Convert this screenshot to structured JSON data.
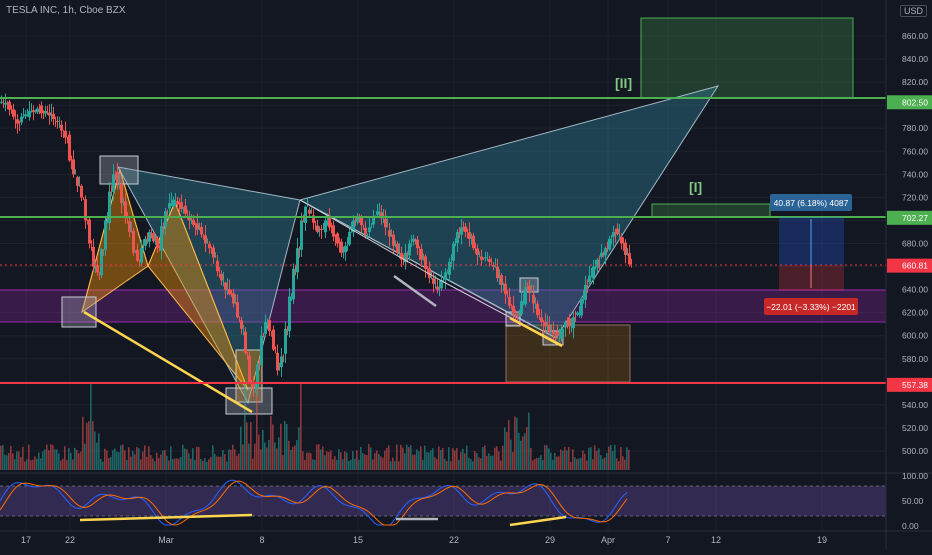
{
  "header": {
    "symbol_title": "TESLA INC, 1h, Cboe BZX",
    "currency": "USD"
  },
  "colors": {
    "background": "#131722",
    "grid": "#1e222d",
    "bull": "#26a69a",
    "bear": "#ef5350",
    "resistance_line": "#4caf50",
    "support_line": "#f23645",
    "zone_purple": "#9c27b0",
    "harmonic_blue": "#2f6f86",
    "harmonic_orange": "#ff9800",
    "trendline_yellow": "#ffd54f",
    "trendline_gray": "#b2b5be",
    "long_target": "#2962ff",
    "long_stop": "#f23645"
  },
  "chart_data": {
    "type": "candlestick",
    "y_axis": {
      "ticks": [
        "860.00",
        "840.00",
        "820.00",
        "800.00",
        "780.00",
        "760.00",
        "740.00",
        "720.00",
        "700.00",
        "680.00",
        "660.00",
        "640.00",
        "620.00",
        "600.00",
        "580.00",
        "560.00",
        "540.00",
        "520.00",
        "500.00"
      ],
      "range": [
        490,
        880
      ]
    },
    "x_axis": {
      "ticks": [
        "17",
        "22",
        "Mar",
        "8",
        "15",
        "22",
        "29",
        "Apr",
        "7",
        "12",
        "19"
      ]
    },
    "price_labels": [
      {
        "text": "802.50",
        "value": 802.5,
        "color": "#4caf50"
      },
      {
        "text": "702.27",
        "value": 702.27,
        "color": "#4caf50"
      },
      {
        "text": "660.81",
        "value": 660.81,
        "color": "#f23645"
      },
      {
        "text": "557.38",
        "value": 557.38,
        "color": "#f23645"
      }
    ],
    "horizontal_lines": [
      {
        "value": 802.5,
        "kind": "resistance"
      },
      {
        "value": 702.27,
        "kind": "resistance"
      },
      {
        "value": 557.38,
        "kind": "support"
      }
    ],
    "zones": [
      {
        "from": 612,
        "to": 638,
        "kind": "purple-demand"
      }
    ],
    "annotations": [
      {
        "text": "[II]"
      },
      {
        "text": "[I]"
      }
    ],
    "long_position": {
      "target_label": "40.87 (6.18%) 4087",
      "stop_label": "−22.01 (−3.33%) −2201",
      "entry": 660.81,
      "target": 701.68,
      "stop": 638.8
    },
    "close_path": [
      [
        0,
        803
      ],
      [
        4,
        802
      ],
      [
        8,
        796
      ],
      [
        12,
        790
      ],
      [
        16,
        784
      ],
      [
        20,
        790
      ],
      [
        24,
        792
      ],
      [
        28,
        795
      ],
      [
        32,
        794
      ],
      [
        36,
        797
      ],
      [
        40,
        793
      ],
      [
        44,
        795
      ],
      [
        48,
        791
      ],
      [
        52,
        788
      ],
      [
        56,
        786
      ],
      [
        60,
        778
      ],
      [
        64,
        772
      ],
      [
        68,
        752
      ],
      [
        72,
        740
      ],
      [
        76,
        730
      ],
      [
        80,
        720
      ],
      [
        84,
        700
      ],
      [
        88,
        680
      ],
      [
        92,
        660
      ],
      [
        96,
        655
      ],
      [
        100,
        675
      ],
      [
        104,
        700
      ],
      [
        108,
        725
      ],
      [
        112,
        740
      ],
      [
        116,
        732
      ],
      [
        120,
        715
      ],
      [
        124,
        702
      ],
      [
        128,
        690
      ],
      [
        132,
        672
      ],
      [
        136,
        665
      ],
      [
        140,
        676
      ],
      [
        144,
        684
      ],
      [
        148,
        690
      ],
      [
        152,
        682
      ],
      [
        156,
        676
      ],
      [
        160,
        695
      ],
      [
        164,
        708
      ],
      [
        168,
        715
      ],
      [
        172,
        718
      ],
      [
        176,
        714
      ],
      [
        180,
        710
      ],
      [
        184,
        706
      ],
      [
        188,
        700
      ],
      [
        192,
        696
      ],
      [
        196,
        692
      ],
      [
        200,
        688
      ],
      [
        204,
        680
      ],
      [
        208,
        676
      ],
      [
        212,
        668
      ],
      [
        216,
        656
      ],
      [
        220,
        648
      ],
      [
        224,
        640
      ],
      [
        228,
        636
      ],
      [
        232,
        628
      ],
      [
        236,
        616
      ],
      [
        240,
        606
      ],
      [
        244,
        585
      ],
      [
        248,
        560
      ],
      [
        252,
        555
      ],
      [
        256,
        575
      ],
      [
        260,
        600
      ],
      [
        264,
        612
      ],
      [
        268,
        604
      ],
      [
        272,
        588
      ],
      [
        276,
        570
      ],
      [
        280,
        582
      ],
      [
        284,
        606
      ],
      [
        288,
        634
      ],
      [
        292,
        658
      ],
      [
        296,
        676
      ],
      [
        300,
        700
      ],
      [
        304,
        712
      ],
      [
        308,
        706
      ],
      [
        312,
        698
      ],
      [
        316,
        690
      ],
      [
        320,
        692
      ],
      [
        324,
        700
      ],
      [
        328,
        694
      ],
      [
        332,
        686
      ],
      [
        336,
        680
      ],
      [
        340,
        672
      ],
      [
        344,
        678
      ],
      [
        348,
        690
      ],
      [
        352,
        700
      ],
      [
        356,
        704
      ],
      [
        360,
        696
      ],
      [
        364,
        688
      ],
      [
        368,
        694
      ],
      [
        372,
        704
      ],
      [
        376,
        708
      ],
      [
        380,
        702
      ],
      [
        384,
        694
      ],
      [
        388,
        686
      ],
      [
        392,
        678
      ],
      [
        396,
        672
      ],
      [
        400,
        666
      ],
      [
        404,
        672
      ],
      [
        408,
        680
      ],
      [
        412,
        684
      ],
      [
        416,
        676
      ],
      [
        420,
        666
      ],
      [
        424,
        658
      ],
      [
        428,
        650
      ],
      [
        432,
        645
      ],
      [
        436,
        640
      ],
      [
        440,
        648
      ],
      [
        444,
        655
      ],
      [
        448,
        664
      ],
      [
        452,
        680
      ],
      [
        456,
        690
      ],
      [
        460,
        694
      ],
      [
        464,
        690
      ],
      [
        468,
        684
      ],
      [
        472,
        676
      ],
      [
        476,
        670
      ],
      [
        480,
        666
      ],
      [
        484,
        668
      ],
      [
        488,
        664
      ],
      [
        492,
        660
      ],
      [
        496,
        650
      ],
      [
        500,
        644
      ],
      [
        504,
        636
      ],
      [
        508,
        626
      ],
      [
        512,
        620
      ],
      [
        516,
        618
      ],
      [
        520,
        630
      ],
      [
        524,
        642
      ],
      [
        528,
        638
      ],
      [
        532,
        628
      ],
      [
        536,
        618
      ],
      [
        540,
        612
      ],
      [
        544,
        608
      ],
      [
        548,
        604
      ],
      [
        552,
        602
      ],
      [
        556,
        600
      ],
      [
        560,
        606
      ],
      [
        564,
        612
      ],
      [
        568,
        608
      ],
      [
        572,
        616
      ],
      [
        576,
        620
      ],
      [
        580,
        632
      ],
      [
        584,
        644
      ],
      [
        588,
        652
      ],
      [
        592,
        660
      ],
      [
        596,
        666
      ],
      [
        600,
        672
      ],
      [
        604,
        676
      ],
      [
        608,
        684
      ],
      [
        612,
        690
      ],
      [
        616,
        688
      ],
      [
        620,
        680
      ],
      [
        624,
        670
      ],
      [
        628,
        662
      ]
    ]
  },
  "oscillator": {
    "ticks": [
      "100.00",
      "50.00",
      "0.00"
    ],
    "upper_band": 80,
    "lower_band": 20
  }
}
